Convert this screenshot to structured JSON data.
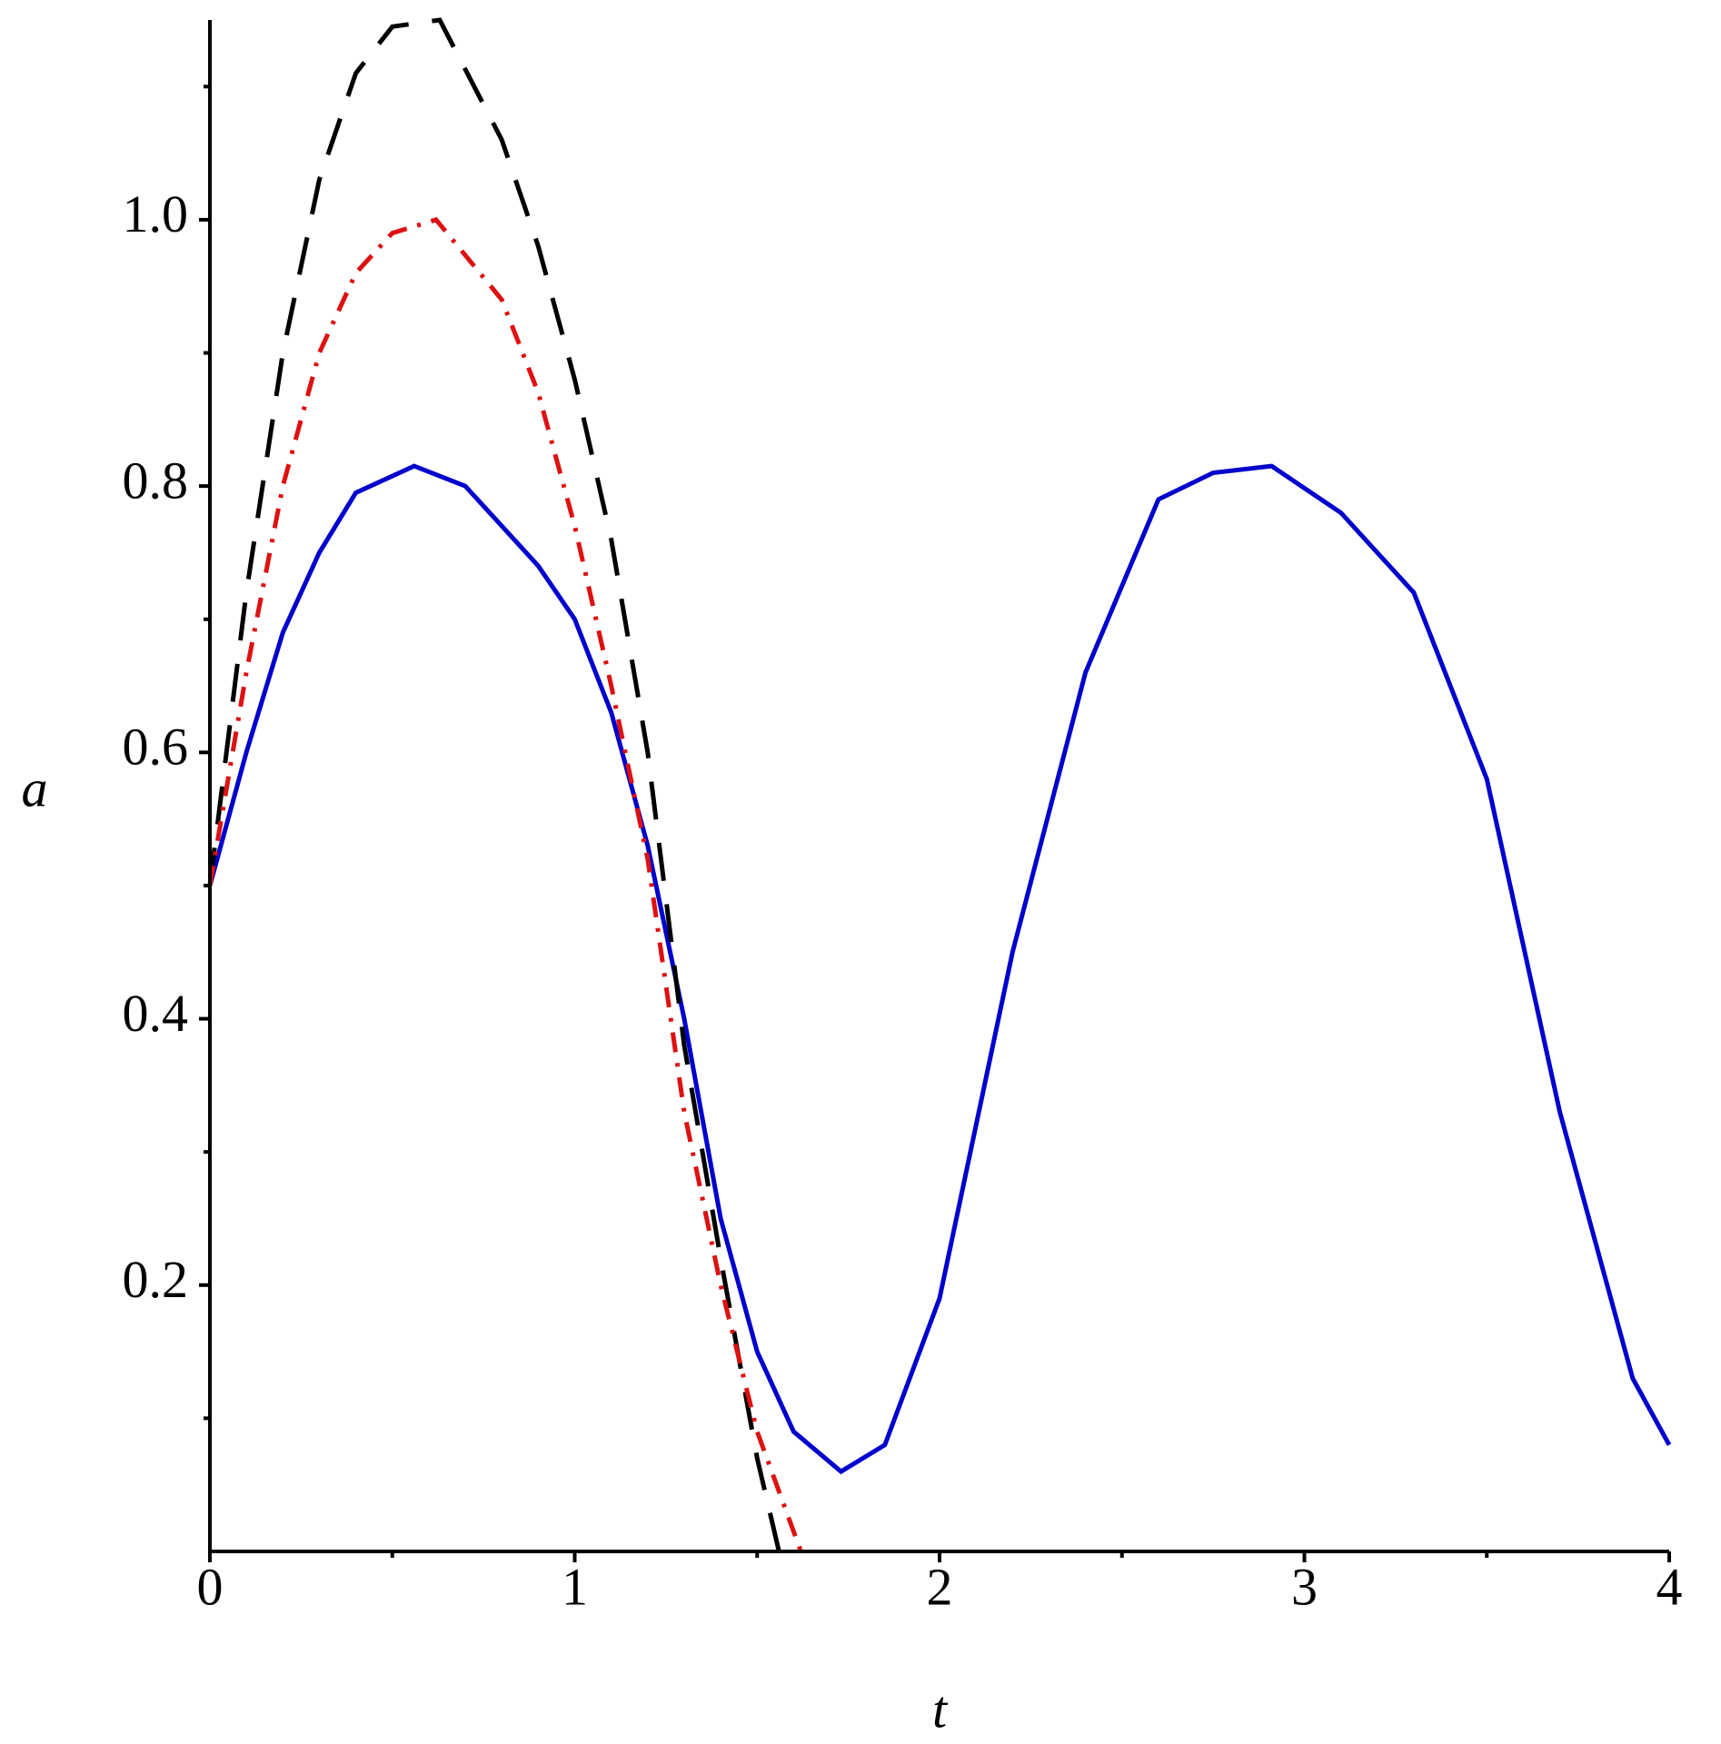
{
  "chart_data": {
    "type": "line",
    "xlabel": "t",
    "ylabel": "a",
    "xlim": [
      0,
      4
    ],
    "ylim": [
      0,
      1.15
    ],
    "xticks": [
      0,
      1,
      2,
      3,
      4
    ],
    "xminorticks": [
      0.5,
      1.5,
      2.5,
      3.5
    ],
    "yticks": [
      0.2,
      0.4,
      0.6,
      0.8,
      {
        "value": 1,
        "label": "1.0"
      }
    ],
    "yminorticks": [
      0.1,
      0.3,
      0.5,
      0.7,
      0.9,
      1.1
    ],
    "series": [
      {
        "color": "#0000cc",
        "dash": "solid",
        "x": [
          0,
          0.1,
          0.2,
          0.3,
          0.4,
          0.56,
          0.7,
          0.8,
          0.9,
          1.0,
          1.1,
          1.2,
          1.3,
          1.4,
          1.5,
          1.6,
          1.73,
          1.85,
          2.0,
          2.2,
          2.4,
          2.6,
          2.75,
          2.91,
          3.1,
          3.3,
          3.5,
          3.7,
          3.9,
          4.0
        ],
        "values": [
          0.5,
          0.6,
          0.69,
          0.75,
          0.795,
          0.815,
          0.8,
          0.77,
          0.74,
          0.7,
          0.63,
          0.53,
          0.4,
          0.25,
          0.15,
          0.09,
          0.06,
          0.08,
          0.19,
          0.45,
          0.66,
          0.79,
          0.81,
          0.815,
          0.78,
          0.72,
          0.58,
          0.33,
          0.13,
          0.08
        ]
      },
      {
        "color": "#000000",
        "dash": "long-dash",
        "x": [
          0,
          0.1,
          0.2,
          0.3,
          0.4,
          0.5,
          0.63,
          0.8,
          0.9,
          1.0,
          1.1,
          1.2,
          1.3,
          1.4,
          1.5,
          1.56
        ],
        "values": [
          0.5,
          0.72,
          0.9,
          1.03,
          1.11,
          1.145,
          1.15,
          1.06,
          0.98,
          0.88,
          0.76,
          0.6,
          0.38,
          0.22,
          0.07,
          0
        ]
      },
      {
        "color": "#dd1111",
        "dash": "dash-dot",
        "x": [
          0,
          0.1,
          0.2,
          0.3,
          0.4,
          0.5,
          0.62,
          0.8,
          0.9,
          1.0,
          1.1,
          1.2,
          1.3,
          1.4,
          1.5,
          1.62
        ],
        "values": [
          0.5,
          0.66,
          0.8,
          0.9,
          0.96,
          0.99,
          1.0,
          0.94,
          0.87,
          0.77,
          0.65,
          0.52,
          0.33,
          0.2,
          0.09,
          0
        ]
      }
    ]
  }
}
